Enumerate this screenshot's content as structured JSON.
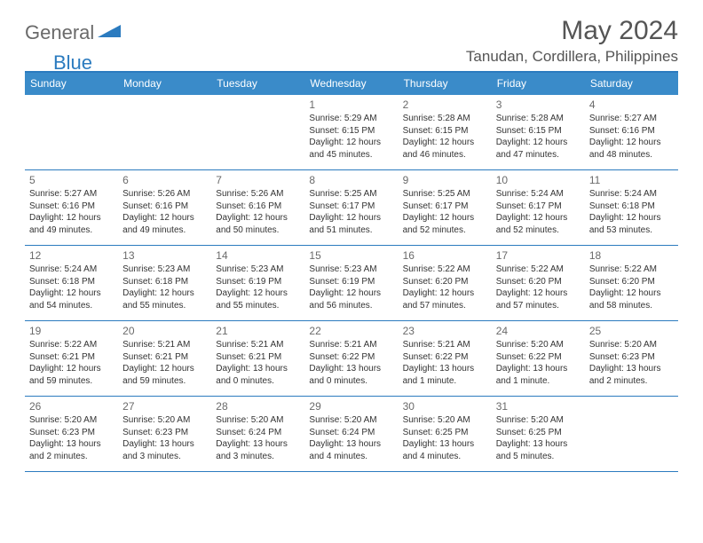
{
  "logo": {
    "part1": "General",
    "part2": "Blue"
  },
  "title": "May 2024",
  "location": "Tanudan, Cordillera, Philippines",
  "colors": {
    "header_bg": "#3a8bc9",
    "border": "#2b7bbf",
    "text": "#333333",
    "muted": "#6a6a6a",
    "logo_gray": "#6a6a6a",
    "logo_blue": "#2b7bbf",
    "background": "#ffffff"
  },
  "days_of_week": [
    "Sunday",
    "Monday",
    "Tuesday",
    "Wednesday",
    "Thursday",
    "Friday",
    "Saturday"
  ],
  "weeks": [
    [
      null,
      null,
      null,
      {
        "n": "1",
        "sunrise": "5:29 AM",
        "sunset": "6:15 PM",
        "daylight": "12 hours and 45 minutes."
      },
      {
        "n": "2",
        "sunrise": "5:28 AM",
        "sunset": "6:15 PM",
        "daylight": "12 hours and 46 minutes."
      },
      {
        "n": "3",
        "sunrise": "5:28 AM",
        "sunset": "6:15 PM",
        "daylight": "12 hours and 47 minutes."
      },
      {
        "n": "4",
        "sunrise": "5:27 AM",
        "sunset": "6:16 PM",
        "daylight": "12 hours and 48 minutes."
      }
    ],
    [
      {
        "n": "5",
        "sunrise": "5:27 AM",
        "sunset": "6:16 PM",
        "daylight": "12 hours and 49 minutes."
      },
      {
        "n": "6",
        "sunrise": "5:26 AM",
        "sunset": "6:16 PM",
        "daylight": "12 hours and 49 minutes."
      },
      {
        "n": "7",
        "sunrise": "5:26 AM",
        "sunset": "6:16 PM",
        "daylight": "12 hours and 50 minutes."
      },
      {
        "n": "8",
        "sunrise": "5:25 AM",
        "sunset": "6:17 PM",
        "daylight": "12 hours and 51 minutes."
      },
      {
        "n": "9",
        "sunrise": "5:25 AM",
        "sunset": "6:17 PM",
        "daylight": "12 hours and 52 minutes."
      },
      {
        "n": "10",
        "sunrise": "5:24 AM",
        "sunset": "6:17 PM",
        "daylight": "12 hours and 52 minutes."
      },
      {
        "n": "11",
        "sunrise": "5:24 AM",
        "sunset": "6:18 PM",
        "daylight": "12 hours and 53 minutes."
      }
    ],
    [
      {
        "n": "12",
        "sunrise": "5:24 AM",
        "sunset": "6:18 PM",
        "daylight": "12 hours and 54 minutes."
      },
      {
        "n": "13",
        "sunrise": "5:23 AM",
        "sunset": "6:18 PM",
        "daylight": "12 hours and 55 minutes."
      },
      {
        "n": "14",
        "sunrise": "5:23 AM",
        "sunset": "6:19 PM",
        "daylight": "12 hours and 55 minutes."
      },
      {
        "n": "15",
        "sunrise": "5:23 AM",
        "sunset": "6:19 PM",
        "daylight": "12 hours and 56 minutes."
      },
      {
        "n": "16",
        "sunrise": "5:22 AM",
        "sunset": "6:20 PM",
        "daylight": "12 hours and 57 minutes."
      },
      {
        "n": "17",
        "sunrise": "5:22 AM",
        "sunset": "6:20 PM",
        "daylight": "12 hours and 57 minutes."
      },
      {
        "n": "18",
        "sunrise": "5:22 AM",
        "sunset": "6:20 PM",
        "daylight": "12 hours and 58 minutes."
      }
    ],
    [
      {
        "n": "19",
        "sunrise": "5:22 AM",
        "sunset": "6:21 PM",
        "daylight": "12 hours and 59 minutes."
      },
      {
        "n": "20",
        "sunrise": "5:21 AM",
        "sunset": "6:21 PM",
        "daylight": "12 hours and 59 minutes."
      },
      {
        "n": "21",
        "sunrise": "5:21 AM",
        "sunset": "6:21 PM",
        "daylight": "13 hours and 0 minutes."
      },
      {
        "n": "22",
        "sunrise": "5:21 AM",
        "sunset": "6:22 PM",
        "daylight": "13 hours and 0 minutes."
      },
      {
        "n": "23",
        "sunrise": "5:21 AM",
        "sunset": "6:22 PM",
        "daylight": "13 hours and 1 minute."
      },
      {
        "n": "24",
        "sunrise": "5:20 AM",
        "sunset": "6:22 PM",
        "daylight": "13 hours and 1 minute."
      },
      {
        "n": "25",
        "sunrise": "5:20 AM",
        "sunset": "6:23 PM",
        "daylight": "13 hours and 2 minutes."
      }
    ],
    [
      {
        "n": "26",
        "sunrise": "5:20 AM",
        "sunset": "6:23 PM",
        "daylight": "13 hours and 2 minutes."
      },
      {
        "n": "27",
        "sunrise": "5:20 AM",
        "sunset": "6:23 PM",
        "daylight": "13 hours and 3 minutes."
      },
      {
        "n": "28",
        "sunrise": "5:20 AM",
        "sunset": "6:24 PM",
        "daylight": "13 hours and 3 minutes."
      },
      {
        "n": "29",
        "sunrise": "5:20 AM",
        "sunset": "6:24 PM",
        "daylight": "13 hours and 4 minutes."
      },
      {
        "n": "30",
        "sunrise": "5:20 AM",
        "sunset": "6:25 PM",
        "daylight": "13 hours and 4 minutes."
      },
      {
        "n": "31",
        "sunrise": "5:20 AM",
        "sunset": "6:25 PM",
        "daylight": "13 hours and 5 minutes."
      },
      null
    ]
  ],
  "labels": {
    "sunrise": "Sunrise: ",
    "sunset": "Sunset: ",
    "daylight": "Daylight: "
  }
}
